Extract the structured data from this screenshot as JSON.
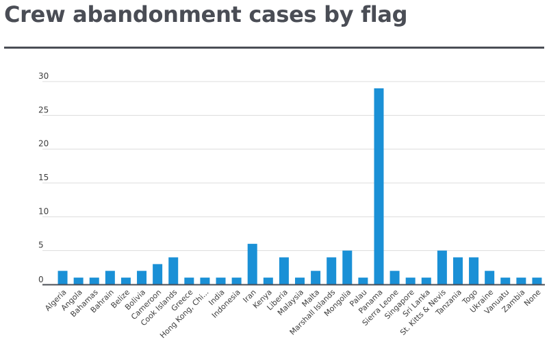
{
  "title": "Crew abandonment cases by flag",
  "colors": {
    "bar": "#1a90d6",
    "grid": "#dcdcdc",
    "axis": "#4a4d55",
    "title": "#4a4d55"
  },
  "chart_data": {
    "type": "bar",
    "title": "Crew abandonment cases by flag",
    "xlabel": "",
    "ylabel": "",
    "ylim": [
      0,
      30
    ],
    "yticks": [
      0,
      5,
      10,
      15,
      20,
      25,
      30
    ],
    "grid": true,
    "legend": "none",
    "categories": [
      "Algeria",
      "Angola",
      "Bahamas",
      "Bahrain",
      "Belize",
      "Bolivia",
      "Cameroon",
      "Cook Islands",
      "Greece",
      "Hong Kong, Chi...",
      "India",
      "Indonesia",
      "Iran",
      "Kenya",
      "Liberia",
      "Malaysia",
      "Malta",
      "Marshall Islands",
      "Mongolia",
      "Palau",
      "Panama",
      "Sierra Leone",
      "Singapore",
      "Sri Lanka",
      "St. Kitts & Nevis",
      "Tanzania",
      "Togo",
      "Ukraine",
      "Vanuatu",
      "Zambia",
      "None"
    ],
    "values": [
      2,
      1,
      1,
      2,
      1,
      2,
      3,
      4,
      1,
      1,
      1,
      1,
      6,
      1,
      4,
      1,
      2,
      4,
      5,
      1,
      29,
      2,
      1,
      1,
      5,
      4,
      4,
      2,
      1,
      1,
      1
    ]
  }
}
